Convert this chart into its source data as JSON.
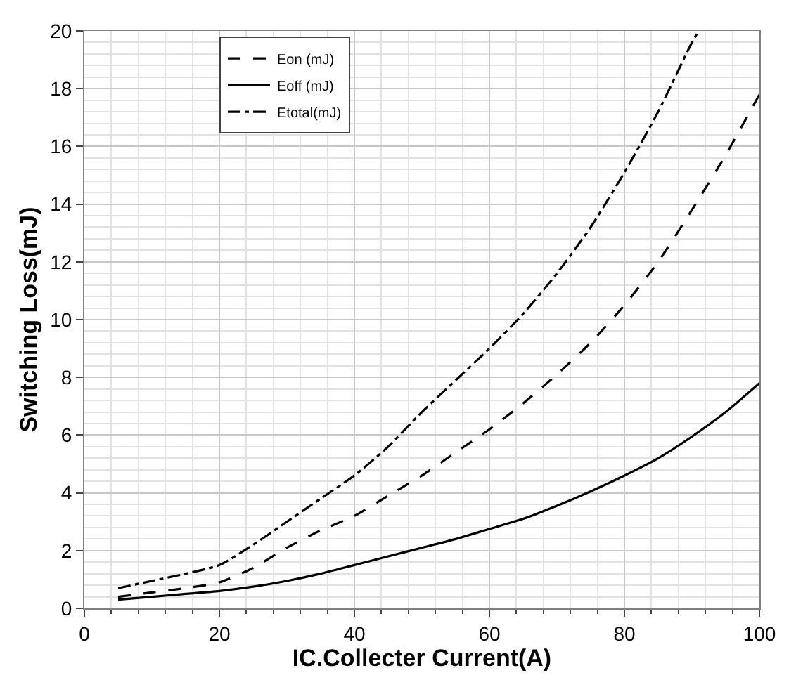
{
  "chart_data": {
    "type": "line",
    "xlabel": "IC.Collecter Current(A)",
    "ylabel": "Switching Loss(mJ)",
    "x": [
      5,
      10,
      15,
      20,
      25,
      30,
      35,
      40,
      45,
      50,
      55,
      60,
      65,
      70,
      75,
      80,
      85,
      90,
      95,
      100
    ],
    "series": [
      {
        "name": "Eon (mJ)",
        "color": "#000000",
        "line_style": "dashed",
        "values": [
          0.4,
          0.55,
          0.7,
          0.9,
          1.4,
          2.1,
          2.7,
          3.2,
          3.9,
          4.6,
          5.4,
          6.2,
          7.1,
          8.1,
          9.2,
          10.5,
          12.0,
          13.8,
          15.7,
          17.8
        ]
      },
      {
        "name": "Eoff (mJ)",
        "color": "#000000",
        "line_style": "solid",
        "values": [
          0.3,
          0.4,
          0.5,
          0.6,
          0.75,
          0.95,
          1.2,
          1.5,
          1.8,
          2.1,
          2.4,
          2.75,
          3.1,
          3.55,
          4.05,
          4.6,
          5.2,
          5.95,
          6.8,
          7.8
        ]
      },
      {
        "name": "Etotal(mJ)",
        "color": "#000000",
        "line_style": "dashdot",
        "x": [
          5,
          10,
          15,
          20,
          25,
          30,
          35,
          40,
          45,
          50,
          55,
          60,
          65,
          70,
          75,
          80,
          85,
          90,
          91
        ],
        "values": [
          0.7,
          0.95,
          1.2,
          1.5,
          2.2,
          3.0,
          3.8,
          4.6,
          5.6,
          6.8,
          7.9,
          9.0,
          10.2,
          11.6,
          13.2,
          15.1,
          17.2,
          19.6,
          20
        ]
      }
    ],
    "xlim": [
      0,
      100
    ],
    "xticks": [
      0,
      20,
      40,
      60,
      80,
      100
    ],
    "ylim": [
      0,
      20
    ],
    "yticks": [
      0,
      2,
      4,
      6,
      8,
      10,
      12,
      14,
      16,
      18,
      20
    ],
    "grid": true,
    "legend": "top left",
    "marker": "none"
  }
}
